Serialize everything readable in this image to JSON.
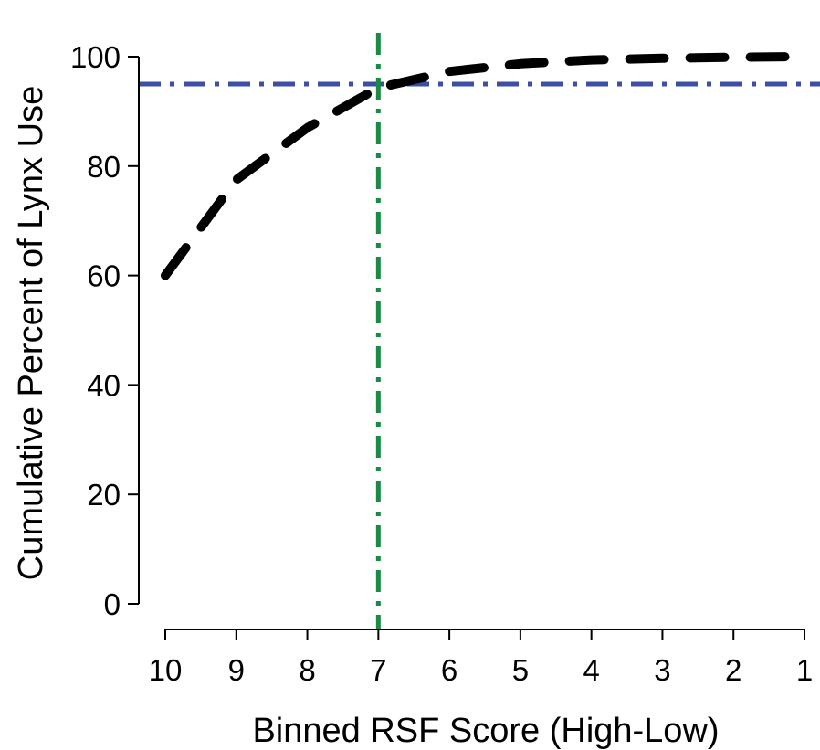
{
  "chart_data": {
    "type": "line",
    "title": "",
    "xlabel": "Binned RSF Score (High-Low)",
    "ylabel": "Cumulative Percent of Lynx Use",
    "x_tick_labels": [
      "10",
      "9",
      "8",
      "7",
      "6",
      "5",
      "4",
      "3",
      "2",
      "1"
    ],
    "y_ticks": [
      0,
      20,
      40,
      60,
      80,
      100
    ],
    "ylim": [
      0,
      100
    ],
    "x": [
      10,
      9,
      8,
      7,
      6,
      5,
      4,
      3,
      2,
      1
    ],
    "series": [
      {
        "values": [
          60,
          77.5,
          87,
          94.3,
          97.3,
          98.7,
          99.4,
          99.7,
          99.9,
          100
        ],
        "color": "#000000",
        "style": "dashed"
      }
    ],
    "reference_lines": [
      {
        "orientation": "horizontal",
        "value": 95,
        "color": "#3A4FA5",
        "style": "dash-dot"
      },
      {
        "orientation": "vertical",
        "value": 7,
        "color": "#1A8A44",
        "style": "dash-dot"
      }
    ],
    "grid": false,
    "legend": "none"
  }
}
